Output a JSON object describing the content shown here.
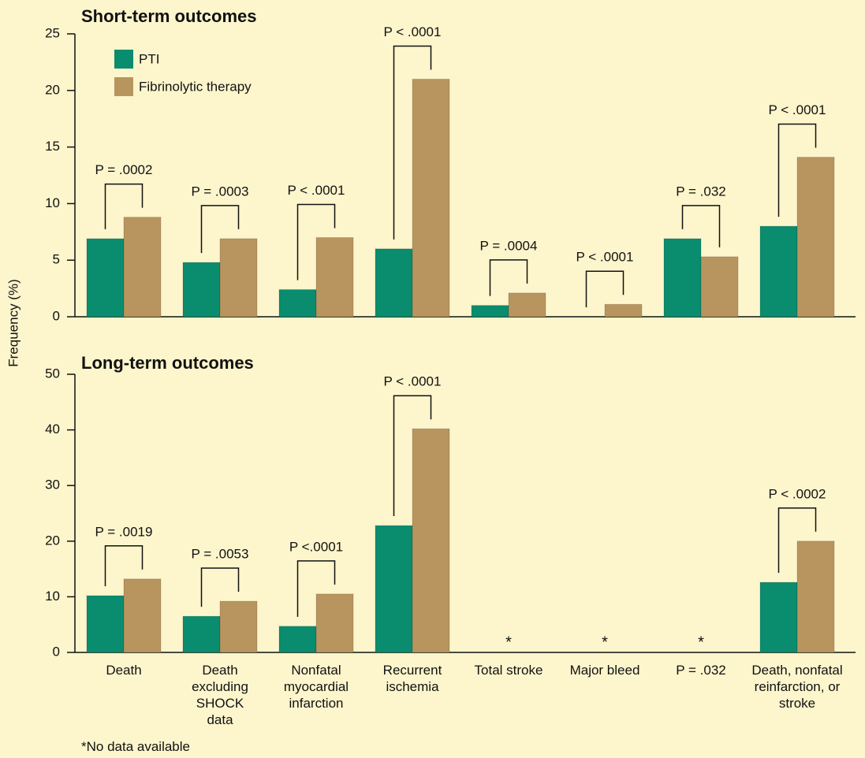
{
  "chart_data": [
    {
      "type": "bar",
      "title": "Short-term outcomes",
      "ylabel": "Frequency (%)",
      "ylim": [
        0,
        25
      ],
      "yticks": [
        0,
        5,
        10,
        15,
        20,
        25
      ],
      "legend": "upper left",
      "series": [
        {
          "name": "PTI",
          "color": "#0a8c6e",
          "values": [
            6.9,
            4.8,
            2.4,
            6.0,
            1.0,
            0,
            6.9,
            8.0
          ]
        },
        {
          "name": "Fibrinolytic therapy",
          "color": "#b8955f",
          "values": [
            8.8,
            6.9,
            7.0,
            21.0,
            2.1,
            1.1,
            5.3,
            14.1
          ]
        }
      ],
      "annotations": [
        "P = .0002",
        "P = .0003",
        "P < .0001",
        "P < .0001",
        "P = .0004",
        "P < .0001",
        "P = .032",
        "P < .0001"
      ]
    },
    {
      "type": "bar",
      "title": "Long-term outcomes",
      "categories": [
        "Death",
        "Death excluding SHOCK data",
        "Nonfatal myocardial infarction",
        "Recurrent ischemia",
        "Total stroke",
        "Major bleed",
        "P = .032",
        "Death, nonfatal reinfarction, or stroke"
      ],
      "ylim": [
        0,
        50
      ],
      "yticks": [
        0,
        10,
        20,
        30,
        40,
        50
      ],
      "series": [
        {
          "color": "#0a8c6e",
          "values": [
            10.2,
            6.5,
            4.7,
            22.8,
            null,
            null,
            null,
            12.6
          ]
        },
        {
          "color": "#b8955f",
          "values": [
            13.2,
            9.2,
            10.5,
            40.2,
            null,
            null,
            null,
            20.0
          ]
        }
      ],
      "annotations": [
        "P = .0019",
        "P = .0053",
        "P <.0001",
        "P < .0001",
        null,
        null,
        null,
        "P < .0002"
      ],
      "missing_marker": "*",
      "footnote": "*No data available"
    }
  ]
}
